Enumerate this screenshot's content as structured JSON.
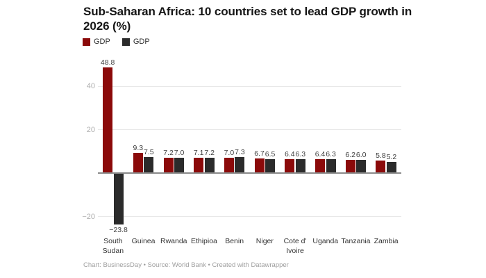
{
  "title": "Sub-Saharan Africa: 10 countries set to lead GDP growth in\n2026 (%)",
  "footer": "Chart: BusinessDay • Source: World Bank • Created with Datawrapper",
  "legend": [
    {
      "label": "GDP",
      "color": "#8b0a0a"
    },
    {
      "label": "GDP",
      "color": "#2b2b2b"
    }
  ],
  "colors": {
    "series1": "#8b0a0a",
    "series2": "#2b2b2b",
    "gridline": "#e8e8e8",
    "zero_axis": "#8a8a8a",
    "tick_text": "#b0b0b0",
    "value_text": "#3d3d3d",
    "category_text": "#333333",
    "footer_text": "#9e9e9e"
  },
  "chart_data": {
    "type": "bar",
    "title": "Sub-Saharan Africa: 10 countries set to lead GDP growth in 2026 (%)",
    "categories": [
      "South\nSudan",
      "Guinea",
      "Rwanda",
      "Ethipioa",
      "Benin",
      "Niger",
      "Cote d'\nIvoire",
      "Uganda",
      "Tanzania",
      "Zambia"
    ],
    "series": [
      {
        "name": "GDP",
        "color": "#8b0a0a",
        "values": [
          48.8,
          9.3,
          7.2,
          7.1,
          7.0,
          6.7,
          6.4,
          6.4,
          6.2,
          5.8
        ]
      },
      {
        "name": "GDP",
        "color": "#2b2b2b",
        "values": [
          -23.8,
          7.5,
          7.0,
          7.2,
          7.3,
          6.5,
          6.3,
          6.3,
          6.0,
          5.2
        ]
      }
    ],
    "xlabel": "",
    "ylabel": "",
    "yticks": [
      40,
      20,
      -20
    ],
    "ylim": [
      -27.5,
      51.5
    ],
    "grid": true,
    "value_labels": true,
    "legend_position": "top-left"
  }
}
